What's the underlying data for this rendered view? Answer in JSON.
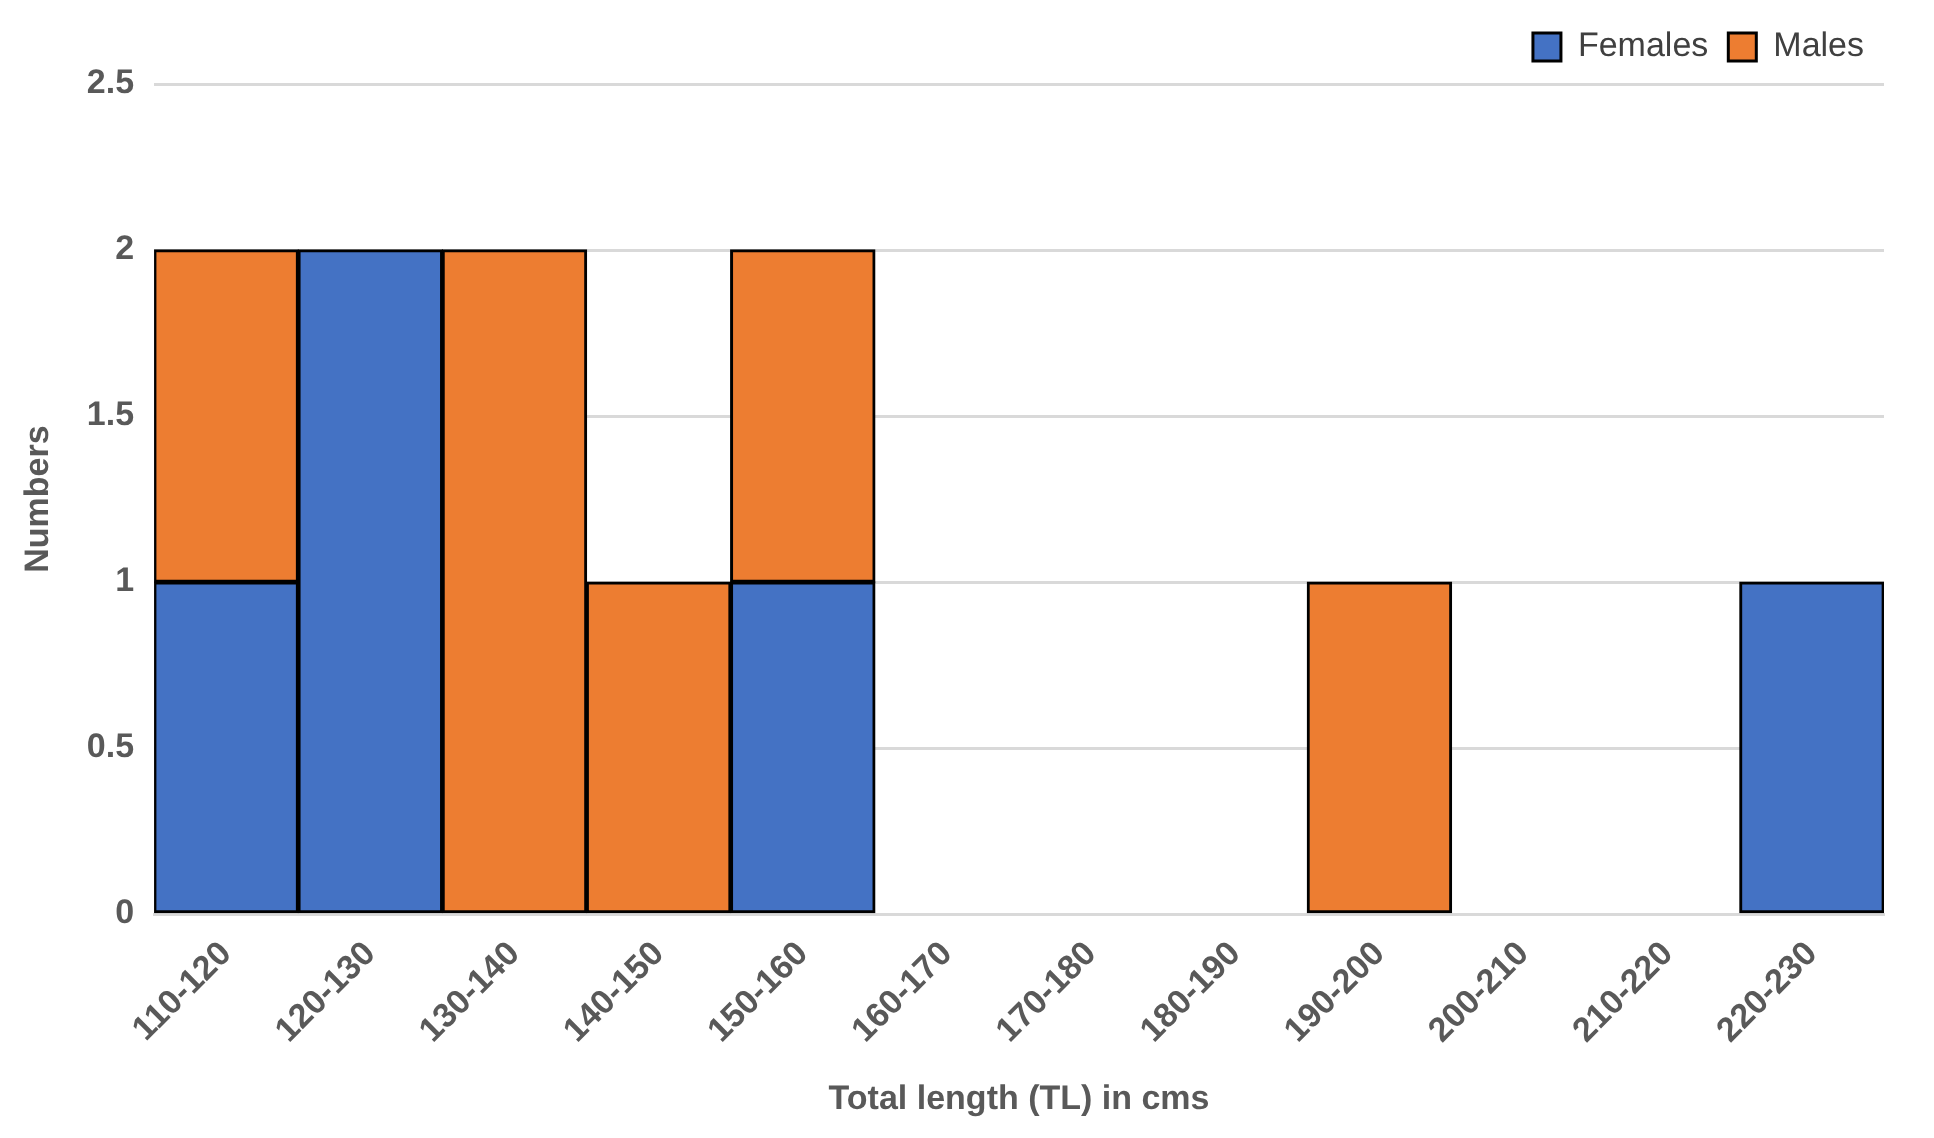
{
  "chart_data": {
    "type": "bar",
    "stacked": true,
    "xlabel": "Total length (TL) in cms",
    "ylabel": "Numbers",
    "categories": [
      "110-120",
      "120-130",
      "130-140",
      "140-150",
      "150-160",
      "160-170",
      "170-180",
      "180-190",
      "190-200",
      "200-210",
      "210-220",
      "220-230"
    ],
    "series": [
      {
        "name": "Females",
        "color": "#4472c4",
        "values": [
          1,
          2,
          0,
          0,
          1,
          0,
          0,
          0,
          0,
          0,
          0,
          1
        ]
      },
      {
        "name": "Males",
        "color": "#ed7d31",
        "values": [
          1,
          0,
          2,
          1,
          1,
          0,
          0,
          0,
          1,
          0,
          0,
          0
        ]
      }
    ],
    "ylim": [
      0,
      2.5
    ],
    "yticks": [
      0,
      0.5,
      1,
      1.5,
      2,
      2.5
    ],
    "grid": "y",
    "legend": "top right"
  }
}
